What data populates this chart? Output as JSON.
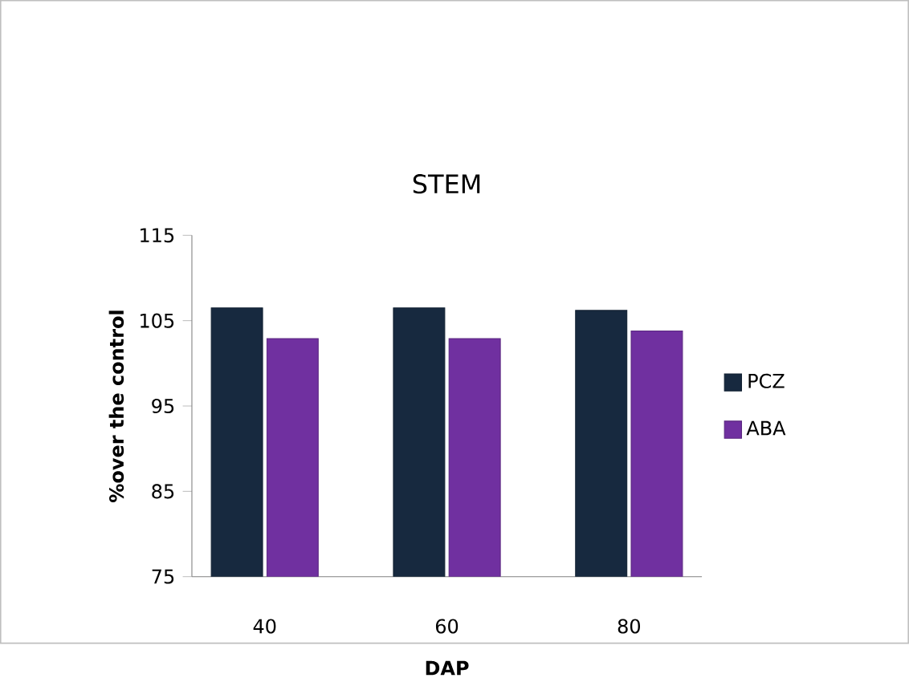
{
  "chart_data": {
    "type": "bar",
    "title": "STEM",
    "xlabel": "DAP",
    "ylabel": "%over the control",
    "categories": [
      "40",
      "60",
      "80"
    ],
    "series": [
      {
        "name": "PCZ",
        "color": "#17293f",
        "values": [
          106.5,
          106.5,
          106.2
        ]
      },
      {
        "name": "ABA",
        "color": "#7030a0",
        "values": [
          102.9,
          102.9,
          103.8
        ]
      }
    ],
    "ylim": [
      75,
      115
    ],
    "yticks": [
      75,
      85,
      95,
      105,
      115
    ],
    "grid": false,
    "legend": "right"
  }
}
